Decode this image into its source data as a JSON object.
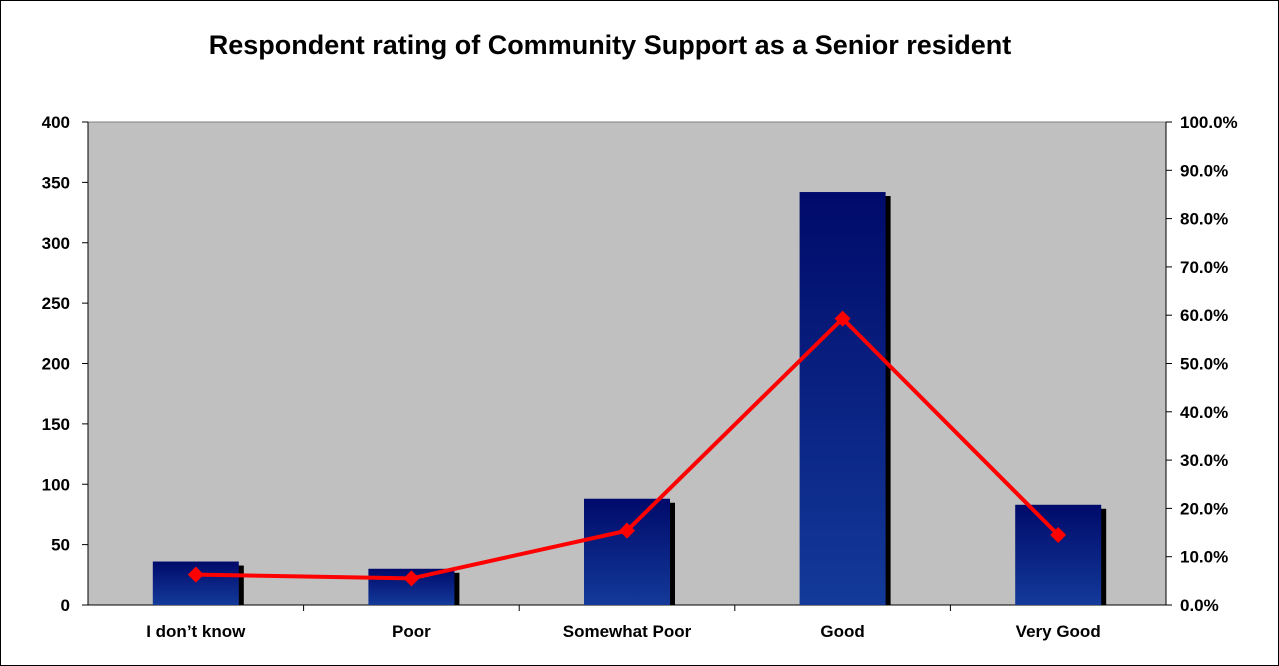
{
  "chart_data": {
    "type": "bar",
    "title": "Respondent rating of Community Support as a Senior resident",
    "categories": [
      "I don’t know",
      "Poor",
      "Somewhat Poor",
      "Good",
      "Very Good"
    ],
    "series": [
      {
        "type": "bar",
        "axis": "left",
        "values": [
          36,
          30,
          88,
          342,
          83
        ]
      },
      {
        "type": "line",
        "axis": "right",
        "values": [
          6.3,
          5.5,
          15.4,
          59.3,
          14.5
        ]
      }
    ],
    "y_left": {
      "range": [
        0,
        400
      ],
      "ticks": [
        0,
        50,
        100,
        150,
        200,
        250,
        300,
        350,
        400
      ]
    },
    "y_right": {
      "range": [
        0,
        100
      ],
      "ticks": [
        "0.0%",
        "10.0%",
        "20.0%",
        "30.0%",
        "40.0%",
        "50.0%",
        "60.0%",
        "70.0%",
        "80.0%",
        "90.0%",
        "100.0%"
      ]
    },
    "colors": {
      "plot_background": "#c0c0c0",
      "bar": "#0a1f7a",
      "bar_top": "#000a5a",
      "bar_shadow": "#000000",
      "line": "#ff0000"
    },
    "grid": false,
    "legend": "none"
  }
}
